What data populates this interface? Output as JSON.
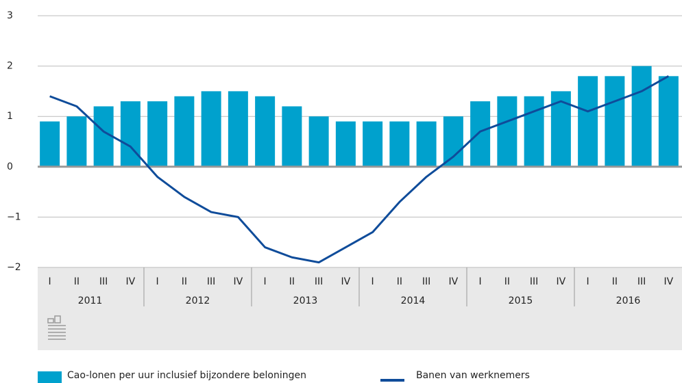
{
  "chart_data": {
    "type": "bar-line",
    "categories": [
      "I",
      "II",
      "III",
      "IV",
      "I",
      "II",
      "III",
      "IV",
      "I",
      "II",
      "III",
      "IV",
      "I",
      "II",
      "III",
      "IV",
      "I",
      "II",
      "III",
      "IV",
      "I",
      "II",
      "III",
      "IV"
    ],
    "groups": [
      "2011",
      "2012",
      "2013",
      "2014",
      "2015",
      "2016"
    ],
    "series": [
      {
        "name": "Cao-lonen per uur inclusief bijzondere beloningen",
        "type": "bar",
        "color": "#00a1cd",
        "values": [
          0.9,
          1.0,
          1.2,
          1.3,
          1.3,
          1.4,
          1.5,
          1.5,
          1.4,
          1.2,
          1.0,
          0.9,
          0.9,
          0.9,
          0.9,
          1.0,
          1.3,
          1.4,
          1.4,
          1.5,
          1.8,
          1.8,
          2.0,
          1.8
        ]
      },
      {
        "name": "Banen van werknemers",
        "type": "line",
        "color": "#0f4c9a",
        "values": [
          1.4,
          1.2,
          0.7,
          0.4,
          -0.2,
          -0.6,
          -0.9,
          -1.0,
          -1.6,
          -1.8,
          -1.9,
          -1.6,
          -1.3,
          -0.7,
          -0.2,
          0.2,
          0.7,
          0.9,
          1.1,
          1.3,
          1.1,
          1.3,
          1.5,
          1.8
        ]
      }
    ],
    "ylim": [
      -2,
      3
    ],
    "yticks": [
      {
        "value": -2,
        "label": "−2"
      },
      {
        "value": -1,
        "label": "−1"
      },
      0,
      1,
      2,
      3
    ],
    "grid": true
  }
}
